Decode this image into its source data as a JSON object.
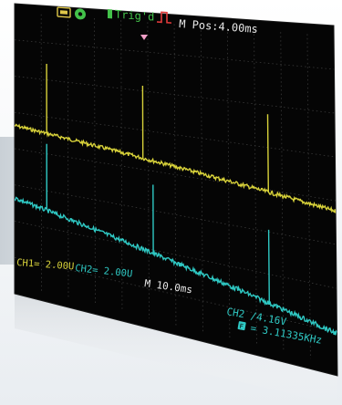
{
  "status_bar": {
    "trigger_label": "Trig'd",
    "position_label": "M Pos:4.00ms"
  },
  "readouts": {
    "ch1_scale": "CH1= 2.00U",
    "ch2_scale": "CH2= 2.00U",
    "time_base": "M 10.0ms",
    "trigger_source_level": "CH2 /4.16V",
    "frequency": "= 3.11335KHz"
  },
  "colors": {
    "screen_bg": "#050505",
    "grid": "#3a3a3a",
    "ch1": "#d8d23a",
    "ch2": "#2fc9c4",
    "status_text": "#e0c84a",
    "trigger_text": "#43c24a",
    "edge_icon": "#e23b3b",
    "marker": "#f2a0c8"
  },
  "icons": {
    "run_icon": "run-state-icon",
    "usb_icon": "usb-icon",
    "trigger_edge_icon": "rising-edge-icon",
    "trigger_marker_icon": "trigger-position-marker-icon",
    "freq_icon": "frequency-icon"
  }
}
